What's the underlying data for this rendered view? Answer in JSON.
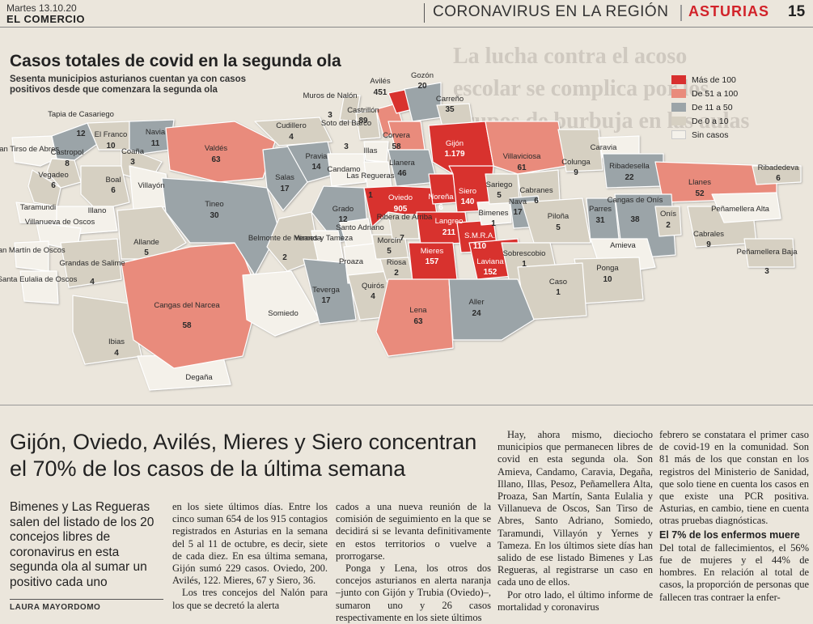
{
  "header": {
    "date": "Martes 13.10.20",
    "paper": "EL COMERCIO",
    "section": "CORONAVIRUS EN LA REGIÓN",
    "region": "ASTURIAS",
    "page": "15"
  },
  "map": {
    "title": "Casos totales de covid en la segunda ola",
    "subtitle": "Sesenta municipios asturianos cuentan ya con casos positivos desde que comenzara la segunda ola",
    "legend": [
      {
        "label": "Más de 100",
        "color": "#d8302f"
      },
      {
        "label": "De 51 a 100",
        "color": "#e98b7c"
      },
      {
        "label": "De 11 a 50",
        "color": "#9ba4a8"
      },
      {
        "label": "De 0 a 10",
        "color": "#d6d0c2"
      },
      {
        "label": "Sin casos",
        "color": "#f4f1ea"
      }
    ],
    "municipalities": [
      {
        "name": "Avilés",
        "value": "451"
      },
      {
        "name": "Gozón",
        "value": "20"
      },
      {
        "name": "Carreño",
        "value": "35"
      },
      {
        "name": "Muros de Nalón",
        "value": "3"
      },
      {
        "name": "Castrillón",
        "value": "89"
      },
      {
        "name": "Soto del Barco",
        "value": "3"
      },
      {
        "name": "Tapia de Casariego",
        "value": "12"
      },
      {
        "name": "El Franco",
        "value": "10"
      },
      {
        "name": "Navia",
        "value": "11"
      },
      {
        "name": "Coaña",
        "value": "3"
      },
      {
        "name": "Valdés",
        "value": "63"
      },
      {
        "name": "Cudillero",
        "value": "4"
      },
      {
        "name": "San Tirso de Abres",
        "value": ""
      },
      {
        "name": "Castropol",
        "value": "8"
      },
      {
        "name": "Vegadeo",
        "value": "6"
      },
      {
        "name": "Boal",
        "value": "6"
      },
      {
        "name": "Villayón",
        "value": ""
      },
      {
        "name": "Taramundi",
        "value": ""
      },
      {
        "name": "Illano",
        "value": ""
      },
      {
        "name": "Villanueva de Oscos",
        "value": ""
      },
      {
        "name": "San Martín de Oscos",
        "value": ""
      },
      {
        "name": "Santa Eulalia de Oscos",
        "value": ""
      },
      {
        "name": "Grandas de Salime",
        "value": "4"
      },
      {
        "name": "Allande",
        "value": "5"
      },
      {
        "name": "Tineo",
        "value": "30"
      },
      {
        "name": "Salas",
        "value": "17"
      },
      {
        "name": "Pravia",
        "value": "14"
      },
      {
        "name": "Illas",
        "value": ""
      },
      {
        "name": "Corvera",
        "value": "58"
      },
      {
        "name": "Gijón",
        "value": "1.179"
      },
      {
        "name": "Llanera",
        "value": "46"
      },
      {
        "name": "Candamo",
        "value": ""
      },
      {
        "name": "Las Regueras",
        "value": "1"
      },
      {
        "name": "Grado",
        "value": "12"
      },
      {
        "name": "Oviedo",
        "value": "905"
      },
      {
        "name": "Noreña",
        "value": "6"
      },
      {
        "name": "Siero",
        "value": "140"
      },
      {
        "name": "Sariego",
        "value": "5"
      },
      {
        "name": "Villaviciosa",
        "value": "61"
      },
      {
        "name": "Colunga",
        "value": "9"
      },
      {
        "name": "Caravia",
        "value": ""
      },
      {
        "name": "Ribadesella",
        "value": "22"
      },
      {
        "name": "Ribadedeva",
        "value": "6"
      },
      {
        "name": "Llanes",
        "value": "52"
      },
      {
        "name": "Cabranes",
        "value": "6"
      },
      {
        "name": "Nava",
        "value": "17"
      },
      {
        "name": "Bimenes",
        "value": "1"
      },
      {
        "name": "Langreo",
        "value": "211"
      },
      {
        "name": "Santo Adriano",
        "value": ""
      },
      {
        "name": "Ribera de Arriba",
        "value": "7"
      },
      {
        "name": "Belmonte de Miranda",
        "value": "2"
      },
      {
        "name": "Yernes y Tameza",
        "value": ""
      },
      {
        "name": "Morcín",
        "value": "5"
      },
      {
        "name": "S.M.R.A.",
        "value": "110"
      },
      {
        "name": "Piloña",
        "value": "5"
      },
      {
        "name": "Parres",
        "value": "31"
      },
      {
        "name": "Cangas de Onís",
        "value": "38"
      },
      {
        "name": "Onís",
        "value": "2"
      },
      {
        "name": "Peñamellera Alta",
        "value": ""
      },
      {
        "name": "Cabrales",
        "value": "9"
      },
      {
        "name": "Peñamellera Baja",
        "value": "3"
      },
      {
        "name": "Amieva",
        "value": ""
      },
      {
        "name": "Proaza",
        "value": ""
      },
      {
        "name": "Riosa",
        "value": "2"
      },
      {
        "name": "Mieres",
        "value": "157"
      },
      {
        "name": "Laviana",
        "value": "152"
      },
      {
        "name": "Sobrescobio",
        "value": "1"
      },
      {
        "name": "Ponga",
        "value": "10"
      },
      {
        "name": "Caso",
        "value": "1"
      },
      {
        "name": "Quirós",
        "value": "4"
      },
      {
        "name": "Teverga",
        "value": "17"
      },
      {
        "name": "Somiedo",
        "value": ""
      },
      {
        "name": "Lena",
        "value": "63"
      },
      {
        "name": "Aller",
        "value": "24"
      },
      {
        "name": "Cangas del Narcea",
        "value": "58"
      },
      {
        "name": "Ibias",
        "value": "4"
      },
      {
        "name": "Degaña",
        "value": ""
      }
    ]
  },
  "background_headline": [
    "La lucha contra el acoso",
    "escolar se complica por los",
    "grupos de burbuja en las aulas"
  ],
  "article": {
    "headline": "Gijón, Oviedo, Avilés, Mieres y Siero concentran el 70% de los casos de la última semana",
    "lead": "Bimenes y Las Regueras salen del listado de los 20 concejos libres de coronavirus en esta segunda ola al sumar un positivo cada uno",
    "byline": "LAURA MAYORDOMO",
    "col1": [
      "en los siete últimos días. Entre los cinco suman 654 de los 915 contagios registrados en Asturias en la semana del 5 al 11 de octubre, es decir, siete de cada diez. En esa última semana, Gijón sumó 229 casos. Oviedo, 200. Avilés, 122. Mieres, 67 y Siero, 36.",
      "Los tres concejos del Nalón para los que se decretó la alerta"
    ],
    "col2": [
      "cados a una nueva reunión de la comisión de seguimiento en la que se decidirá si se levanta definitivamente en estos territorios o vuelve a prorrogarse.",
      "Ponga y Lena, los otros dos concejos asturianos en alerta naranja –junto con Gijón y Trubia (Oviedo)–, sumaron uno y 26 casos respectivamente en los siete últimos"
    ],
    "col3": [
      "Hay, ahora mismo, dieciocho municipios que permanecen libres de covid en esta segunda ola. Son Amieva, Candamo, Caravia, Degaña, Illano, Illas, Pesoz, Peñamellera Alta, Proaza, San Martín, Santa Eulalia y Villanueva de Oscos, San Tirso de Abres, Santo Adriano, Somiedo, Taramundi, Villayón y Yernes y Tameza. En los últimos siete días han salido de ese listado Bimenes y Las Regueras, al registrarse un caso en cada uno de ellos.",
      "Por otro lado, el último informe de mortalidad y coronavirus"
    ],
    "col4": [
      "febrero se constatara el primer caso de covid-19 en la comunidad. Son 81 más de los que constan en los registros del Ministerio de Sanidad, que solo tiene en cuenta los casos en que existe una PCR positiva. Asturias, en cambio, tiene en cuenta otras pruebas diagnósticas."
    ],
    "subhead": "El 7% de los enfermos muere",
    "col4b": "Del total de fallecimientos, el 56% fue de mujeres y el 44% de hombres. En relación al total de casos, la proporción de personas que fallecen tras contraer la enfer-"
  }
}
